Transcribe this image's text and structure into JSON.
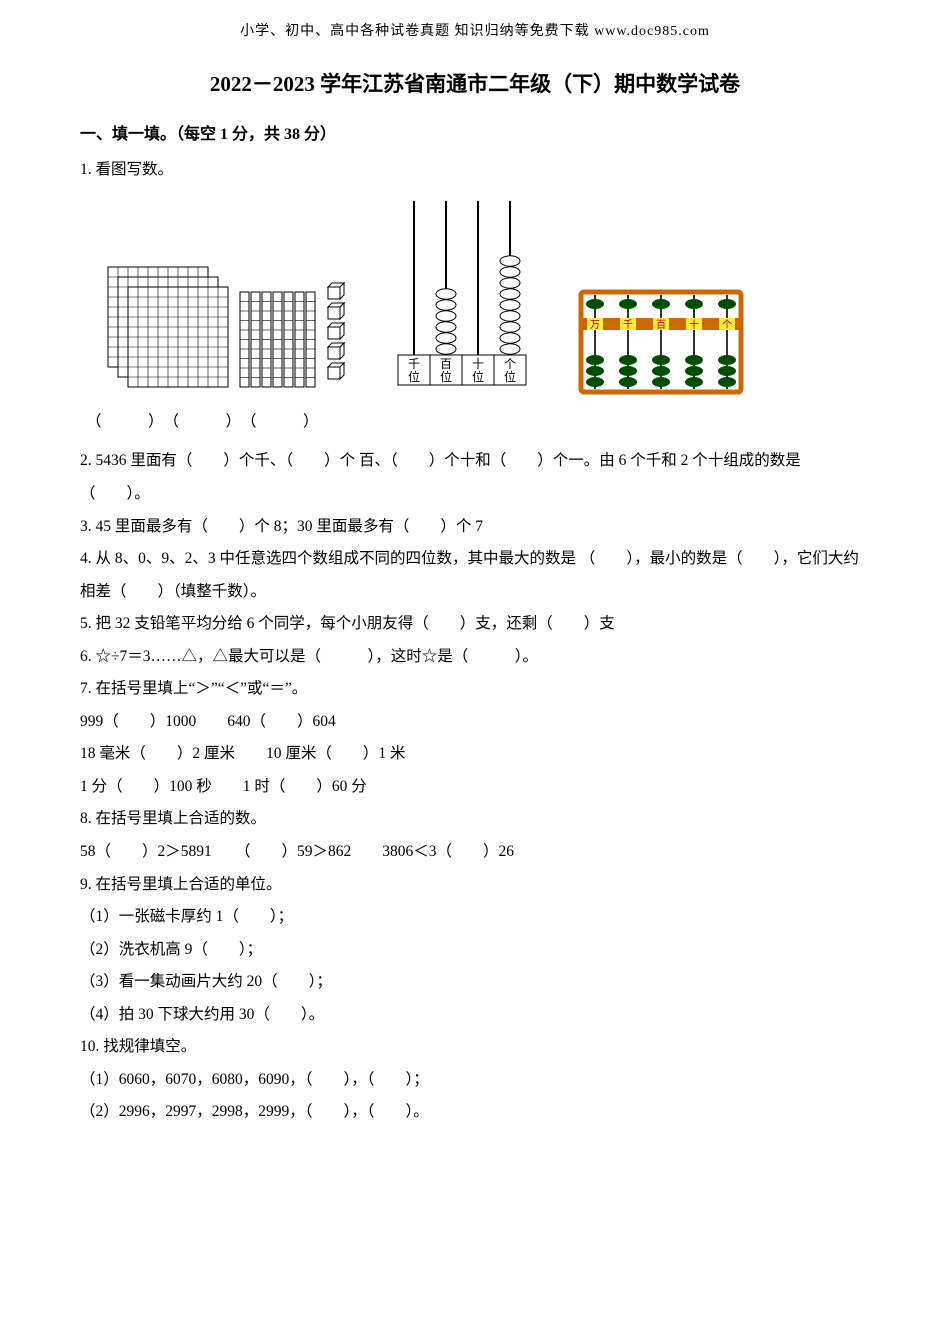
{
  "header": {
    "source_line": "小学、初中、高中各种试卷真题 知识归纳等免费下载   www.doc985.com"
  },
  "title": "2022－2023 学年江苏省南通市二年级（下）期中数学试卷",
  "section1": {
    "heading": "一、填一填。（每空 1 分，共 38 分）"
  },
  "q1": {
    "prompt": "1. 看图写数。",
    "cap": "（　　　）　（　　　）　（　　　）"
  },
  "q2": {
    "text": "2. 5436 里面有（　　）个千、（　　）个 百、（　　）个十和（　　）个一。由 6 个千和 2 个十组成的数是（　　）。"
  },
  "q3": {
    "text": "3. 45 里面最多有（　　）个 8；30 里面最多有（　　）个 7"
  },
  "q4": {
    "text": "4. 从 8、0、9、2、3 中任意选四个数组成不同的四位数，其中最大的数是 （　　），最小的数是（　　），它们大约相差（　　）（填整千数）。"
  },
  "q5": {
    "text": "5. 把 32 支铅笔平均分给 6 个同学，每个小朋友得（　　）支，还剩（　　）支"
  },
  "q6": {
    "text": "6. ☆÷7＝3……△，△最大可以是（　　　），这时☆是（　　　）。"
  },
  "q7": {
    "line0": "7. 在括号里填上“＞”“＜”或“＝”。",
    "line1": "999（　　）1000　　640（　　）604",
    "line2": "18 毫米（　　）2 厘米　　10 厘米（　　）1 米",
    "line3": "1 分（　　）100 秒　　1 时（　　）60 分"
  },
  "q8": {
    "line0": "8. 在括号里填上合适的数。",
    "line1": "58（　　）2＞5891　　（　　）59＞862　　3806＜3（　　）26"
  },
  "q9": {
    "line0": "9. 在括号里填上合适的单位。",
    "line1": "（1）一张磁卡厚约 1（　　）；",
    "line2": "（2）洗衣机高 9（　　）；",
    "line3": "（3）看一集动画片大约 20（　　）；",
    "line4": "（4）拍 30 下球大约用 30（　　）。"
  },
  "q10": {
    "line0": "10. 找规律填空。",
    "line1": "（1）6060，6070，6080，6090，（　　），（　　）；",
    "line2": "（2）2996，2997，2998，2999，（　　），（　　）。"
  },
  "fig_grid": {
    "stroke": "#000000",
    "fill": "#ffffff",
    "block_cells": 10
  },
  "fig_rods": {
    "stroke": "#000000",
    "labels": [
      "千位",
      "百位",
      "十位",
      "个位"
    ],
    "bead_counts": [
      0,
      6,
      0,
      9
    ],
    "label_fontsize": 12
  },
  "fig_abacus": {
    "frame_color": "#cc6a00",
    "bead_color": "#004d00",
    "rod_color": "#333333",
    "labels": [
      "万",
      "千",
      "百",
      "十",
      "个"
    ],
    "upper_counts": [
      1,
      1,
      1,
      1,
      1
    ],
    "lower_counts": [
      3,
      3,
      3,
      3,
      3
    ],
    "label_bg": "#ffeb3b"
  }
}
